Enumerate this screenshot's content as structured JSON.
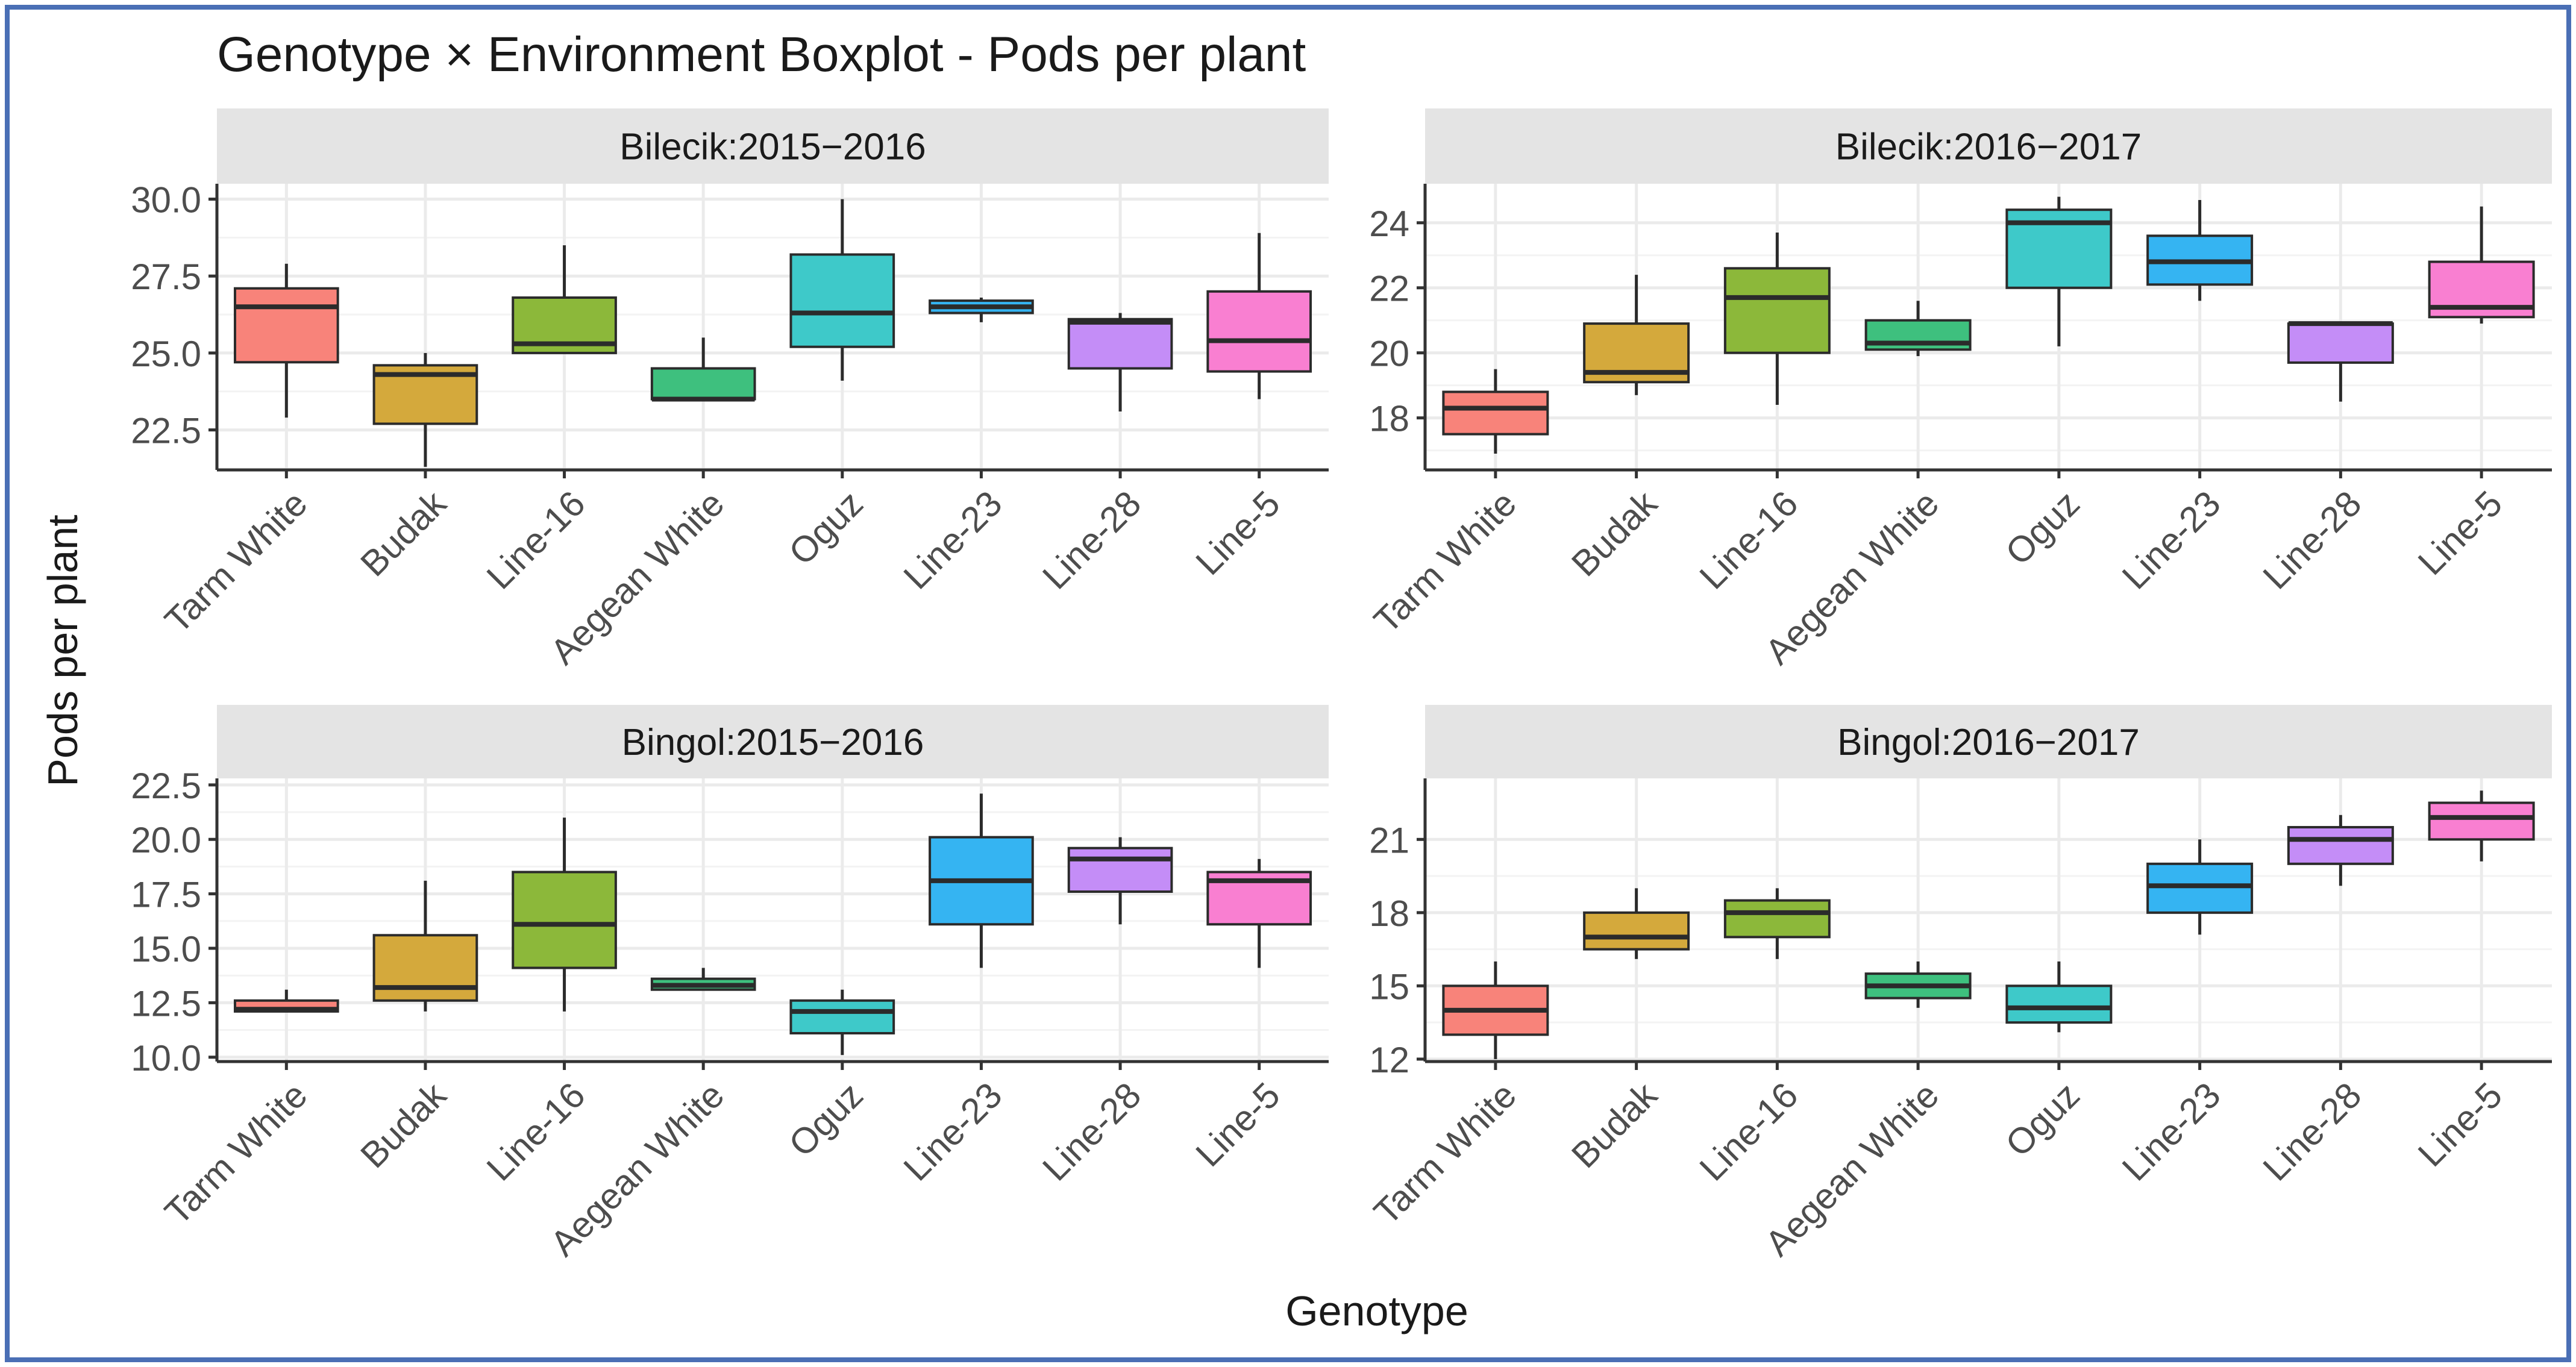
{
  "title": "Genotype × Environment Boxplot - Pods per plant",
  "xlabel": "Genotype",
  "ylabel": "Pods per plant",
  "colors": {
    "border": "#4a6fb5",
    "strip_bg": "#e4e4e4",
    "grid": "#ebebeb",
    "axis": "#333333",
    "median": "#2b2b2b",
    "tick_text": "#4d4d4d",
    "title_text": "#1a1a1a",
    "genotype_fills": [
      "#f8837a",
      "#d4a93c",
      "#8cb83a",
      "#3ec07e",
      "#3ec9c9",
      "#35b4f2",
      "#c48df7",
      "#f97fd1"
    ]
  },
  "chart_data": [
    {
      "type": "boxplot",
      "panel": "Bilecik:2015−2016",
      "categories": [
        "Tarm White",
        "Budak",
        "Line-16",
        "Aegean White",
        "Oguz",
        "Line-23",
        "Line-28",
        "Line-5"
      ],
      "yticks": [
        22.5,
        25.0,
        27.5,
        30.0
      ],
      "ytick_labels": [
        "22.5",
        "25.0",
        "27.5",
        "30.0"
      ],
      "ylim": [
        21.2,
        30.5
      ],
      "boxes": [
        {
          "min": 22.9,
          "q1": 24.7,
          "median": 26.5,
          "q3": 27.1,
          "max": 27.9
        },
        {
          "min": 21.3,
          "q1": 22.7,
          "median": 24.3,
          "q3": 24.6,
          "max": 25.0
        },
        {
          "min": 25.0,
          "q1": 25.0,
          "median": 25.3,
          "q3": 26.8,
          "max": 28.5
        },
        {
          "min": 23.5,
          "q1": 23.5,
          "median": 23.5,
          "q3": 24.5,
          "max": 25.5
        },
        {
          "min": 24.1,
          "q1": 25.2,
          "median": 26.3,
          "q3": 28.2,
          "max": 30.0
        },
        {
          "min": 26.0,
          "q1": 26.3,
          "median": 26.5,
          "q3": 26.7,
          "max": 26.8
        },
        {
          "min": 23.1,
          "q1": 24.5,
          "median": 26.0,
          "q3": 26.1,
          "max": 26.3
        },
        {
          "min": 23.5,
          "q1": 24.4,
          "median": 25.4,
          "q3": 27.0,
          "max": 28.9
        }
      ]
    },
    {
      "type": "boxplot",
      "panel": "Bilecik:2016−2017",
      "categories": [
        "Tarm White",
        "Budak",
        "Line-16",
        "Aegean White",
        "Oguz",
        "Line-23",
        "Line-28",
        "Line-5"
      ],
      "yticks": [
        18,
        20,
        22,
        24
      ],
      "ytick_labels": [
        "18",
        "20",
        "22",
        "24"
      ],
      "ylim": [
        16.4,
        25.2
      ],
      "boxes": [
        {
          "min": 16.9,
          "q1": 17.5,
          "median": 18.3,
          "q3": 18.8,
          "max": 19.5
        },
        {
          "min": 18.7,
          "q1": 19.1,
          "median": 19.4,
          "q3": 20.9,
          "max": 22.4
        },
        {
          "min": 18.4,
          "q1": 20.0,
          "median": 21.7,
          "q3": 22.6,
          "max": 23.7
        },
        {
          "min": 19.9,
          "q1": 20.1,
          "median": 20.3,
          "q3": 21.0,
          "max": 21.6
        },
        {
          "min": 20.2,
          "q1": 22.0,
          "median": 24.0,
          "q3": 24.4,
          "max": 24.8
        },
        {
          "min": 21.6,
          "q1": 22.1,
          "median": 22.8,
          "q3": 23.6,
          "max": 24.7
        },
        {
          "min": 18.5,
          "q1": 19.7,
          "median": 20.9,
          "q3": 20.9,
          "max": 20.9
        },
        {
          "min": 20.9,
          "q1": 21.1,
          "median": 21.4,
          "q3": 22.8,
          "max": 24.5
        }
      ]
    },
    {
      "type": "boxplot",
      "panel": "Bingol:2015−2016",
      "categories": [
        "Tarm White",
        "Budak",
        "Line-16",
        "Aegean White",
        "Oguz",
        "Line-23",
        "Line-28",
        "Line-5"
      ],
      "yticks": [
        10.0,
        12.5,
        15.0,
        17.5,
        20.0,
        22.5
      ],
      "ytick_labels": [
        "10.0",
        "12.5",
        "15.0",
        "17.5",
        "20.0",
        "22.5"
      ],
      "ylim": [
        9.8,
        22.8
      ],
      "boxes": [
        {
          "min": 12.1,
          "q1": 12.1,
          "median": 12.2,
          "q3": 12.6,
          "max": 13.1
        },
        {
          "min": 12.1,
          "q1": 12.6,
          "median": 13.2,
          "q3": 15.6,
          "max": 18.1
        },
        {
          "min": 12.1,
          "q1": 14.1,
          "median": 16.1,
          "q3": 18.5,
          "max": 21.0
        },
        {
          "min": 13.1,
          "q1": 13.1,
          "median": 13.3,
          "q3": 13.6,
          "max": 14.1
        },
        {
          "min": 10.1,
          "q1": 11.1,
          "median": 12.1,
          "q3": 12.6,
          "max": 13.1
        },
        {
          "min": 14.1,
          "q1": 16.1,
          "median": 18.1,
          "q3": 20.1,
          "max": 22.1
        },
        {
          "min": 16.1,
          "q1": 17.6,
          "median": 19.1,
          "q3": 19.6,
          "max": 20.1
        },
        {
          "min": 14.1,
          "q1": 16.1,
          "median": 18.1,
          "q3": 18.5,
          "max": 19.1
        }
      ]
    },
    {
      "type": "boxplot",
      "panel": "Bingol:2016−2017",
      "categories": [
        "Tarm White",
        "Budak",
        "Line-16",
        "Aegean White",
        "Oguz",
        "Line-23",
        "Line-28",
        "Line-5"
      ],
      "yticks": [
        12,
        15,
        18,
        21
      ],
      "ytick_labels": [
        "12",
        "15",
        "18",
        "21"
      ],
      "ylim": [
        11.9,
        23.5
      ],
      "boxes": [
        {
          "min": 12.0,
          "q1": 13.0,
          "median": 14.0,
          "q3": 15.0,
          "max": 16.0
        },
        {
          "min": 16.1,
          "q1": 16.5,
          "median": 17.0,
          "q3": 18.0,
          "max": 19.0
        },
        {
          "min": 16.1,
          "q1": 17.0,
          "median": 18.0,
          "q3": 18.5,
          "max": 19.0
        },
        {
          "min": 14.1,
          "q1": 14.5,
          "median": 15.0,
          "q3": 15.5,
          "max": 16.0
        },
        {
          "min": 13.1,
          "q1": 13.5,
          "median": 14.1,
          "q3": 15.0,
          "max": 16.0
        },
        {
          "min": 17.1,
          "q1": 18.0,
          "median": 19.1,
          "q3": 20.0,
          "max": 21.0
        },
        {
          "min": 19.1,
          "q1": 20.0,
          "median": 21.0,
          "q3": 21.5,
          "max": 22.0
        },
        {
          "min": 20.1,
          "q1": 21.0,
          "median": 21.9,
          "q3": 22.5,
          "max": 23.0
        }
      ]
    }
  ]
}
